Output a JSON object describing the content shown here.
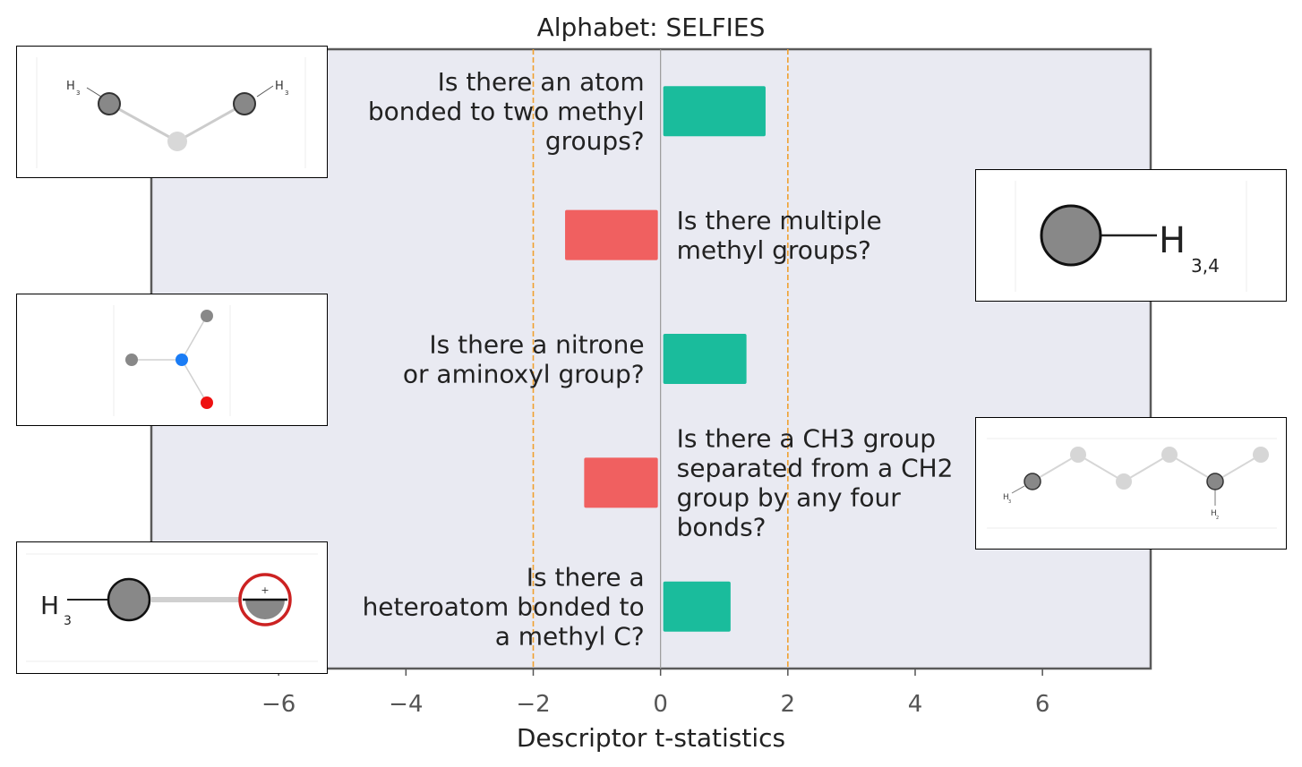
{
  "chart_data": {
    "type": "bar",
    "orientation": "horizontal",
    "title": "Alphabet: SELFIES",
    "xlabel": "Descriptor t-statistics",
    "ylabel": "",
    "xlim": [
      -8.0,
      7.7
    ],
    "xticks": [
      -6,
      -4,
      -2,
      0,
      2,
      4,
      6
    ],
    "xtick_labels": [
      "−6",
      "−4",
      "−2",
      "0",
      "2",
      "4",
      "6"
    ],
    "reference_lines": [
      -2,
      2
    ],
    "grid": false,
    "categories": [
      "Is there an atom bonded to two methyl groups?",
      "Is there multiple methyl groups?",
      "Is there a nitrone or aminoxyl group?",
      "Is there a CH3 group separated from a CH2 group by any four bonds?",
      "Is there a heteroatom bonded to a methyl C?"
    ],
    "label_lines": [
      [
        "Is there an atom",
        "bonded to two methyl",
        "groups?"
      ],
      [
        "Is there multiple",
        "methyl groups?"
      ],
      [
        "Is there a nitrone",
        "or aminoxyl group?"
      ],
      [
        "Is there a CH3 group",
        "separated from a CH2",
        "group by any four",
        "bonds?"
      ],
      [
        "Is there a",
        "heteroatom bonded to",
        "a methyl C?"
      ]
    ],
    "values": [
      1.65,
      -1.5,
      1.35,
      -1.2,
      1.1
    ],
    "colors": {
      "positive": "#1abc9c",
      "negative": "#f06060",
      "background": "#e9eaf2",
      "reference": "#f0a030"
    }
  },
  "insets": {
    "inset1": {
      "labels": [
        "H",
        "3",
        "H",
        "3"
      ]
    },
    "inset2": {
      "labels": [
        "H",
        "3,4"
      ]
    },
    "inset3": {
      "labels": []
    },
    "inset4": {
      "labels": [
        "H",
        "3",
        "H",
        "2"
      ]
    },
    "inset5": {
      "labels": [
        "H",
        "3",
        "+"
      ]
    }
  }
}
